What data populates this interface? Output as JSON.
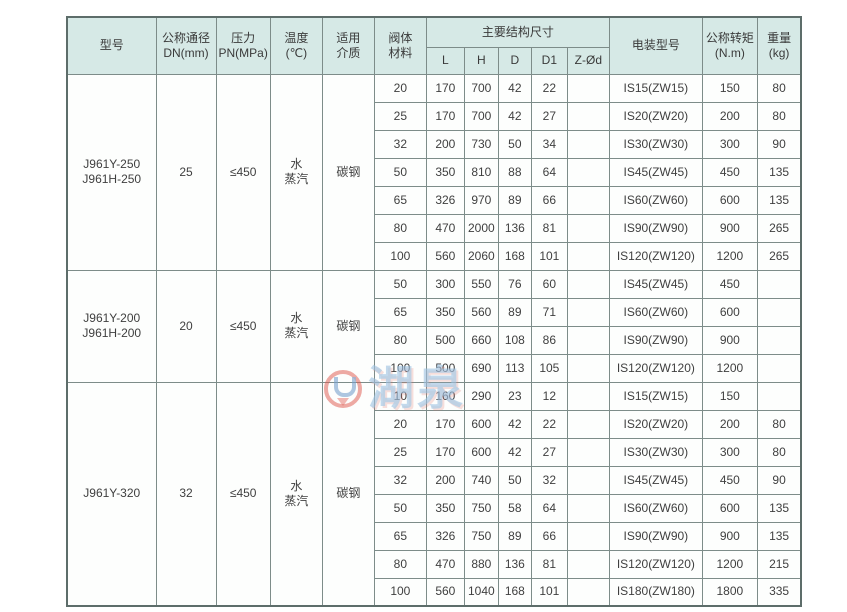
{
  "table": {
    "header": {
      "model": "型号",
      "dn": "公称通径\nDN(mm)",
      "pn": "压力\nPN(MPa)",
      "temp": "温度\n(℃)",
      "medium": "适用\n介质",
      "material": "阀体\n材料",
      "dims_group": "主要结构尺寸",
      "dims": [
        "L",
        "H",
        "D",
        "D1",
        "Z-Ød"
      ],
      "motor": "电装型号",
      "torque": "公称转矩\n(N.m)",
      "weight": "重量\n(kg)"
    },
    "groups": [
      {
        "model": "J961Y-250\nJ961H-250",
        "pn": "25",
        "temp": "≤450",
        "medium": "水\n蒸汽",
        "material": "碳钢",
        "rows": [
          {
            "dn": "20",
            "L": "170",
            "H": "700",
            "D": "42",
            "D1": "22",
            "Z": "",
            "motor": "IS15(ZW15)",
            "torque": "150",
            "weight": "80"
          },
          {
            "dn": "25",
            "L": "170",
            "H": "700",
            "D": "42",
            "D1": "27",
            "Z": "",
            "motor": "IS20(ZW20)",
            "torque": "200",
            "weight": "80"
          },
          {
            "dn": "32",
            "L": "200",
            "H": "730",
            "D": "50",
            "D1": "34",
            "Z": "",
            "motor": "IS30(ZW30)",
            "torque": "300",
            "weight": "90"
          },
          {
            "dn": "50",
            "L": "350",
            "H": "810",
            "D": "88",
            "D1": "64",
            "Z": "",
            "motor": "IS45(ZW45)",
            "torque": "450",
            "weight": "135"
          },
          {
            "dn": "65",
            "L": "326",
            "H": "970",
            "D": "89",
            "D1": "66",
            "Z": "",
            "motor": "IS60(ZW60)",
            "torque": "600",
            "weight": "135"
          },
          {
            "dn": "80",
            "L": "470",
            "H": "2000",
            "D": "136",
            "D1": "81",
            "Z": "",
            "motor": "IS90(ZW90)",
            "torque": "900",
            "weight": "265"
          },
          {
            "dn": "100",
            "L": "560",
            "H": "2060",
            "D": "168",
            "D1": "101",
            "Z": "",
            "motor": "IS120(ZW120)",
            "torque": "1200",
            "weight": "265"
          }
        ]
      },
      {
        "model": "J961Y-200\nJ961H-200",
        "pn": "20",
        "temp": "≤450",
        "medium": "水\n蒸汽",
        "material": "碳钢",
        "rows": [
          {
            "dn": "50",
            "L": "300",
            "H": "550",
            "D": "76",
            "D1": "60",
            "Z": "",
            "motor": "IS45(ZW45)",
            "torque": "450",
            "weight": ""
          },
          {
            "dn": "65",
            "L": "350",
            "H": "560",
            "D": "89",
            "D1": "71",
            "Z": "",
            "motor": "IS60(ZW60)",
            "torque": "600",
            "weight": ""
          },
          {
            "dn": "80",
            "L": "500",
            "H": "660",
            "D": "108",
            "D1": "86",
            "Z": "",
            "motor": "IS90(ZW90)",
            "torque": "900",
            "weight": ""
          },
          {
            "dn": "100",
            "L": "500",
            "H": "690",
            "D": "113",
            "D1": "105",
            "Z": "",
            "motor": "IS120(ZW120)",
            "torque": "1200",
            "weight": ""
          }
        ]
      },
      {
        "model": "J961Y-320",
        "pn": "32",
        "temp": "≤450",
        "medium": "水\n蒸汽",
        "material": "碳钢",
        "rows": [
          {
            "dn": "10",
            "L": "160",
            "H": "290",
            "D": "23",
            "D1": "12",
            "Z": "",
            "motor": "IS15(ZW15)",
            "torque": "150",
            "weight": ""
          },
          {
            "dn": "20",
            "L": "170",
            "H": "600",
            "D": "42",
            "D1": "22",
            "Z": "",
            "motor": "IS20(ZW20)",
            "torque": "200",
            "weight": "80"
          },
          {
            "dn": "25",
            "L": "170",
            "H": "600",
            "D": "42",
            "D1": "27",
            "Z": "",
            "motor": "IS30(ZW30)",
            "torque": "300",
            "weight": "80"
          },
          {
            "dn": "32",
            "L": "200",
            "H": "740",
            "D": "50",
            "D1": "32",
            "Z": "",
            "motor": "IS45(ZW45)",
            "torque": "450",
            "weight": "90"
          },
          {
            "dn": "50",
            "L": "350",
            "H": "750",
            "D": "58",
            "D1": "64",
            "Z": "",
            "motor": "IS60(ZW60)",
            "torque": "600",
            "weight": "135"
          },
          {
            "dn": "65",
            "L": "326",
            "H": "750",
            "D": "89",
            "D1": "66",
            "Z": "",
            "motor": "IS90(ZW90)",
            "torque": "900",
            "weight": "135"
          },
          {
            "dn": "80",
            "L": "470",
            "H": "880",
            "D": "136",
            "D1": "81",
            "Z": "",
            "motor": "IS120(ZW120)",
            "torque": "1200",
            "weight": "215"
          },
          {
            "dn": "100",
            "L": "560",
            "H": "1040",
            "D": "168",
            "D1": "101",
            "Z": "",
            "motor": "IS180(ZW180)",
            "torque": "1800",
            "weight": "335"
          }
        ]
      }
    ],
    "colors": {
      "header_bg": "#d6e9e6",
      "cell_bg": "#fdfefd",
      "border": "#7d8c89",
      "outer_border": "#5d6d6a",
      "text": "#3f3f3f"
    }
  },
  "watermark": {
    "text": "湖泉",
    "logo": "huquan-logo",
    "text_color": "#9ec1e0",
    "accent_color": "#de5a50"
  }
}
